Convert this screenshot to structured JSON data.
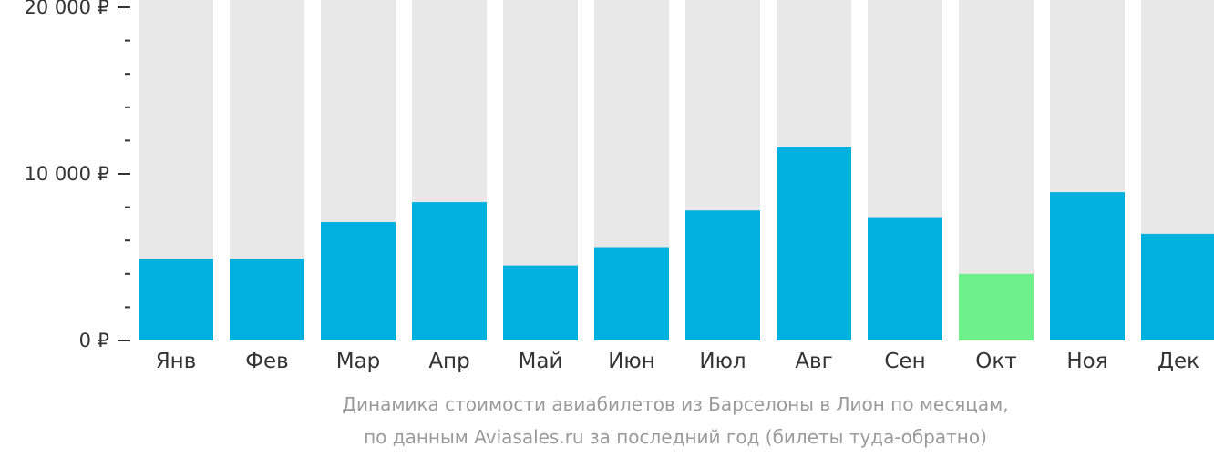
{
  "chart_data": {
    "type": "bar",
    "categories": [
      "Янв",
      "Фев",
      "Мар",
      "Апр",
      "Май",
      "Июн",
      "Июл",
      "Авг",
      "Сен",
      "Окт",
      "Ноя",
      "Дек"
    ],
    "values": [
      4900,
      4900,
      7100,
      8300,
      4500,
      5600,
      7800,
      11600,
      7400,
      4000,
      8900,
      6400
    ],
    "highlight_index": 9,
    "ylim": [
      0,
      20000
    ],
    "yticks": [
      {
        "value": 0,
        "label": "0 ₽"
      },
      {
        "value": 10000,
        "label": "10 000 ₽"
      },
      {
        "value": 20000,
        "label": "20 000 ₽"
      }
    ],
    "minor_tick_step": 2000,
    "title": "",
    "xlabel": "",
    "ylabel": "",
    "grid": false,
    "caption_lines": [
      "Динамика стоимости авиабилетов из Барселоны в Лион по месяцам,",
      "по данным Aviasales.ru за последний год (билеты туда-обратно)"
    ],
    "colors": {
      "bar": "#00b0de",
      "highlight": "#6ef08a",
      "background_bar": "#e8e8e8",
      "axis": "#333333",
      "caption": "#9a9a9a"
    }
  }
}
